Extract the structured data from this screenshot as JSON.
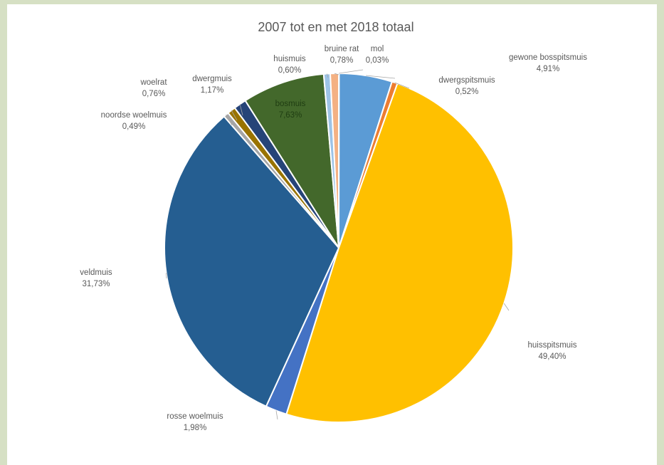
{
  "chart_data": {
    "type": "pie",
    "title": "2007 tot en met 2018 totaal",
    "slices": [
      {
        "name": "mol",
        "value": 0.03,
        "label": "0,03%",
        "color": "#ed7d31"
      },
      {
        "name": "gewone bosspitsmuis",
        "value": 4.91,
        "label": "4,91%",
        "color": "#5b9bd5"
      },
      {
        "name": "dwergspitsmuis",
        "value": 0.52,
        "label": "0,52%",
        "color": "#ed7d31"
      },
      {
        "name": "huisspitsmuis",
        "value": 49.4,
        "label": "49,40%",
        "color": "#ffc000"
      },
      {
        "name": "rosse woelmuis",
        "value": 1.98,
        "label": "1,98%",
        "color": "#4472c4"
      },
      {
        "name": "veldmuis",
        "value": 31.73,
        "label": "31,73%",
        "color": "#255e91"
      },
      {
        "name": "noordse woelmuis",
        "value": 0.49,
        "label": "0,49%",
        "color": "#a5a5a5"
      },
      {
        "name": "woelrat",
        "value": 0.76,
        "label": "0,76%",
        "color": "#997300"
      },
      {
        "name": "dwergmuis",
        "value": 1.17,
        "label": "1,17%",
        "color": "#264478"
      },
      {
        "name": "bosmuis",
        "value": 7.63,
        "label": "7,63%",
        "color": "#43682b"
      },
      {
        "name": "huismuis",
        "value": 0.6,
        "label": "0,60%",
        "color": "#9dc3e6"
      },
      {
        "name": "bruine rat",
        "value": 0.78,
        "label": "0,78%",
        "color": "#f4b183"
      }
    ]
  }
}
